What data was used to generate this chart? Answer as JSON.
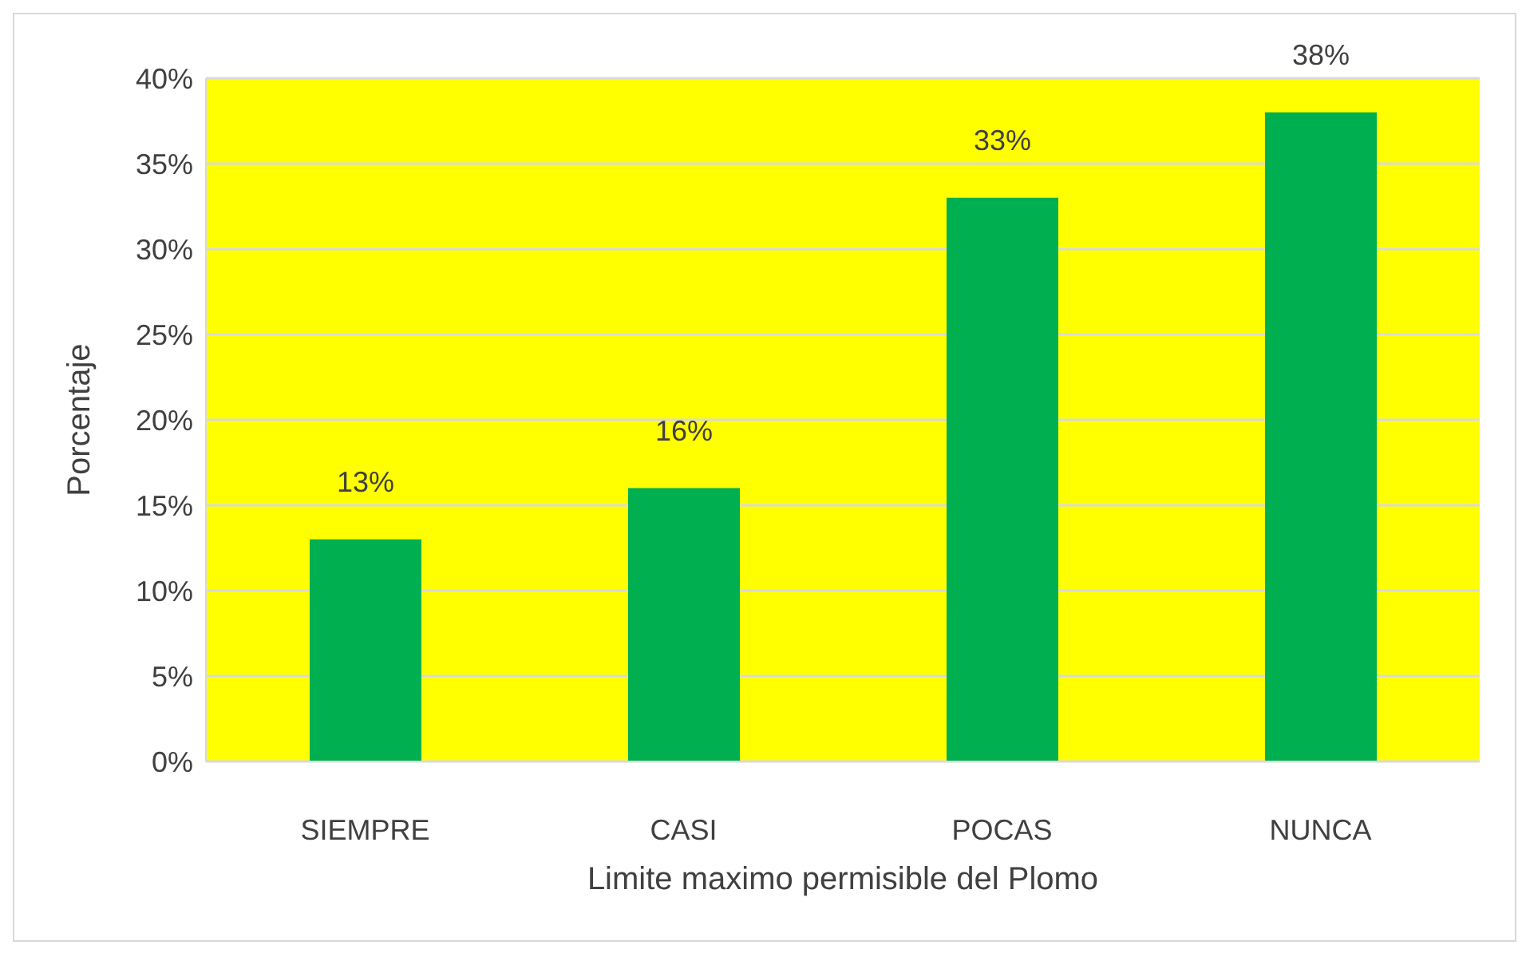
{
  "chart_data": {
    "type": "bar",
    "xlabel": "Limite maximo permisible del Plomo",
    "ylabel": "Porcentaje",
    "categories": [
      "SIEMPRE",
      "CASI",
      "POCAS",
      "NUNCA"
    ],
    "values": [
      13,
      16,
      33,
      38
    ],
    "color": "#00b050",
    "value_labels": [
      "13%",
      "16%",
      "33%",
      "38%"
    ],
    "ylim": [
      0,
      40
    ],
    "yticks": [
      {
        "value": 0,
        "label": "0%"
      },
      {
        "value": 5,
        "label": "5%"
      },
      {
        "value": 10,
        "label": "10%"
      },
      {
        "value": 15,
        "label": "15%"
      },
      {
        "value": 20,
        "label": "20%"
      },
      {
        "value": 25,
        "label": "25%"
      },
      {
        "value": 30,
        "label": "30%"
      },
      {
        "value": 35,
        "label": "35%"
      },
      {
        "value": 40,
        "label": "40%"
      }
    ],
    "grid": "y"
  }
}
